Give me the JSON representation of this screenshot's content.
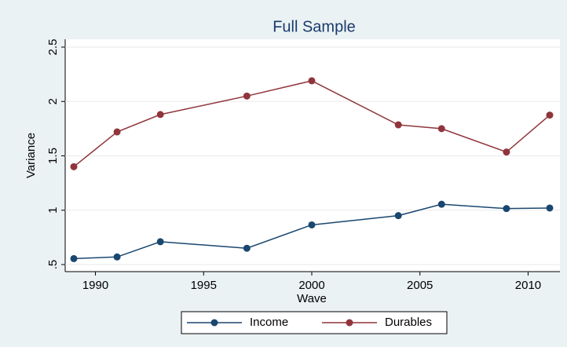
{
  "chart_data": {
    "type": "line",
    "title": "Full Sample",
    "x_label": "Wave",
    "y_label": "Variance",
    "x": [
      1989,
      1991,
      1993,
      1997,
      2000,
      2004,
      2006,
      2009,
      2011
    ],
    "series": [
      {
        "name": "Income",
        "color": "#1a476f",
        "values": [
          0.555,
          0.57,
          0.71,
          0.65,
          0.865,
          0.95,
          1.055,
          1.015,
          1.02
        ]
      },
      {
        "name": "Durables",
        "color": "#90353b",
        "values": [
          1.4,
          1.72,
          1.88,
          2.05,
          2.19,
          1.785,
          1.75,
          1.535,
          1.875
        ]
      }
    ],
    "xlim": [
      1989,
      2011
    ],
    "xticks": [
      1990,
      1995,
      2000,
      2005,
      2010
    ],
    "ylim": [
      0.5,
      2.5
    ],
    "yticks": [
      {
        "value": 0.5,
        "label": ".5"
      },
      1,
      1.5,
      2,
      2.5
    ],
    "grid": true,
    "legend": "bottom"
  }
}
